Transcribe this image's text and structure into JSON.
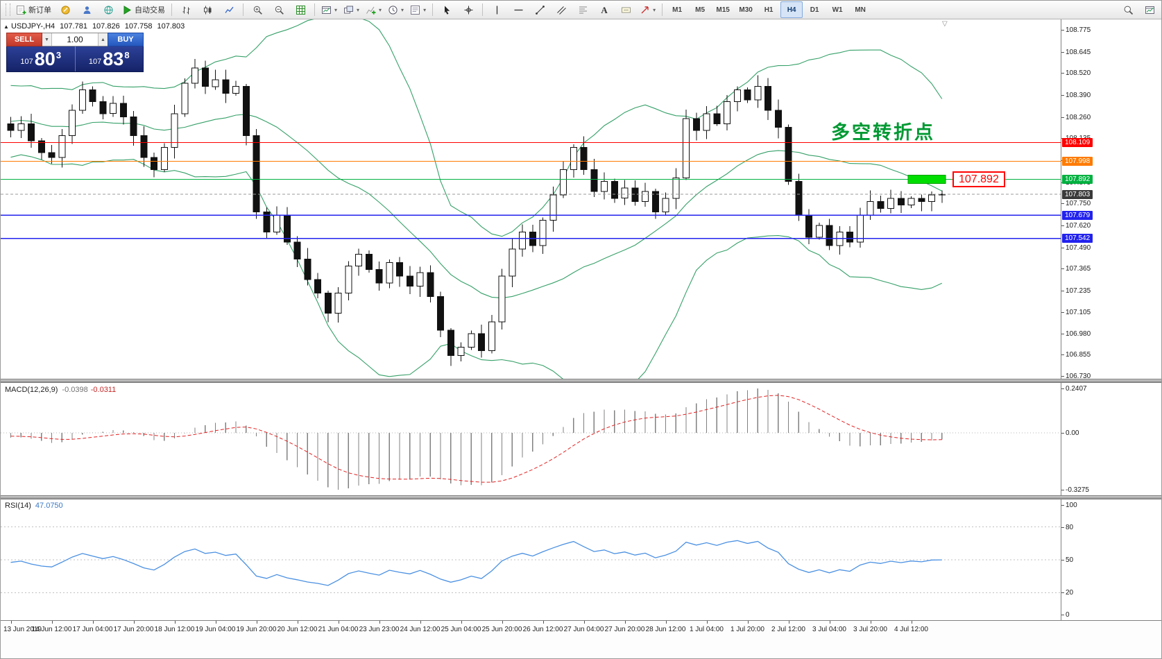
{
  "toolbar": {
    "items": [
      {
        "type": "grip",
        "name": "toolbar-grip"
      },
      {
        "name": "new-order-button",
        "icon": "new-order-icon",
        "label": "新订单"
      },
      {
        "name": "metaeditor-button",
        "icon": "metaeditor-icon"
      },
      {
        "name": "market-watch-button",
        "icon": "market-icon"
      },
      {
        "name": "community-button",
        "icon": "community-icon"
      },
      {
        "name": "autotrading-button",
        "icon": "play-icon",
        "label": "自动交易"
      },
      {
        "type": "sep"
      },
      {
        "name": "bar-chart-button",
        "icon": "bar-chart-icon"
      },
      {
        "name": "candlestick-button",
        "icon": "candlestick-icon"
      },
      {
        "name": "line-chart-button",
        "icon": "line-chart-icon"
      },
      {
        "type": "sep"
      },
      {
        "name": "zoom-in-button",
        "icon": "zoom-in-icon"
      },
      {
        "name": "zoom-out-button",
        "icon": "zoom-out-icon"
      },
      {
        "name": "tile-windows-button",
        "icon": "grid-icon"
      },
      {
        "type": "sep"
      },
      {
        "name": "new-chart-button",
        "icon": "chart-window-icon",
        "caret": true
      },
      {
        "name": "profiles-button",
        "icon": "windows-icon",
        "caret": true
      },
      {
        "name": "indicators-button",
        "icon": "indicators-icon",
        "caret": true
      },
      {
        "name": "periods-button",
        "icon": "clock-icon",
        "caret": true
      },
      {
        "name": "templates-button",
        "icon": "template-icon",
        "caret": true
      },
      {
        "type": "sep"
      },
      {
        "name": "cursor-button",
        "icon": "cursor-icon"
      },
      {
        "name": "crosshair-button",
        "icon": "crosshair-icon"
      },
      {
        "type": "sep"
      },
      {
        "name": "vertical-line-button",
        "icon": "vertical-line-icon"
      },
      {
        "name": "horizontal-line-button",
        "icon": "horizontal-line-icon"
      },
      {
        "name": "trendline-button",
        "icon": "trendline-icon"
      },
      {
        "name": "channel-button",
        "icon": "channel-icon"
      },
      {
        "name": "fibonacci-button",
        "icon": "fibonacci-icon"
      },
      {
        "name": "text-button",
        "icon": "text-icon"
      },
      {
        "name": "label-button",
        "icon": "label-icon"
      },
      {
        "name": "arrows-button",
        "icon": "arrow-icon",
        "caret": true
      },
      {
        "type": "sep"
      }
    ],
    "timeframes": [
      "M1",
      "M5",
      "M15",
      "M30",
      "H1",
      "H4",
      "D1",
      "W1",
      "MN"
    ],
    "active_timeframe": "H4",
    "right_items": [
      {
        "name": "search-button",
        "icon": "search-icon"
      },
      {
        "name": "new-window-button",
        "icon": "chart-window-icon"
      }
    ]
  },
  "chart": {
    "info": {
      "symbol_period": "USDJPY-,H4",
      "open": "107.781",
      "high": "107.826",
      "low": "107.758",
      "close": "107.803"
    }
  },
  "trade_panel": {
    "sell_label": "SELL",
    "buy_label": "BUY",
    "volume": "1.00",
    "sell_price": {
      "small": "107",
      "big": "80",
      "sup": "3"
    },
    "buy_price": {
      "small": "107",
      "big": "83",
      "sup": "8"
    }
  },
  "levels": [
    {
      "price": 108.109,
      "label": "108.109",
      "color": "#ff0000",
      "width": 1.2
    },
    {
      "price": 107.998,
      "label": "107.998",
      "color": "#ff7a00",
      "width": 1.2
    },
    {
      "price": 107.892,
      "label": "107.892",
      "color": "#00b140",
      "width": 1.2
    },
    {
      "price": 107.679,
      "label": "107.679",
      "color": "#2222ee",
      "width": 1.6
    },
    {
      "price": 107.542,
      "label": "107.542",
      "color": "#2222ee",
      "width": 1.6
    }
  ],
  "current_price": {
    "value": 107.803,
    "label": "107.803",
    "badge_color": "#3a3a3a",
    "line_color": "#999999"
  },
  "annotations": {
    "turning_point_text": "多空转折点",
    "turning_point_color": "#009933",
    "price_tag_text": "107.892",
    "price_tag_color": "#ff0000",
    "highlight_price": 107.892,
    "highlight_color": "#00dd00"
  },
  "chart_data": {
    "type": "candlestick",
    "symbol": "USDJPY-",
    "timeframe": "H4",
    "price_top": 108.775,
    "price_bottom": 106.73,
    "y_axis_ticks": [
      "108.775",
      "108.645",
      "108.520",
      "108.390",
      "108.260",
      "108.135",
      "108.005",
      "107.875",
      "107.750",
      "107.620",
      "107.490",
      "107.365",
      "107.235",
      "107.105",
      "106.980",
      "106.855",
      "106.730"
    ],
    "closes": [
      108.18,
      108.22,
      108.12,
      108.05,
      108.02,
      108.15,
      108.3,
      108.42,
      108.35,
      108.28,
      108.34,
      108.26,
      108.15,
      108.02,
      107.95,
      108.08,
      108.28,
      108.46,
      108.55,
      108.44,
      108.48,
      108.4,
      108.44,
      108.15,
      107.7,
      107.58,
      107.68,
      107.52,
      107.42,
      107.3,
      107.22,
      107.1,
      107.22,
      107.38,
      107.45,
      107.36,
      107.28,
      107.4,
      107.32,
      107.26,
      107.34,
      107.2,
      107.0,
      106.85,
      106.9,
      106.98,
      106.88,
      107.05,
      107.32,
      107.48,
      107.58,
      107.5,
      107.65,
      107.8,
      107.95,
      108.08,
      107.95,
      107.82,
      107.88,
      107.78,
      107.84,
      107.76,
      107.82,
      107.7,
      107.78,
      107.9,
      108.25,
      108.18,
      108.28,
      108.22,
      108.35,
      108.42,
      108.36,
      108.44,
      108.3,
      108.2,
      107.88,
      107.68,
      107.55,
      107.62,
      107.5,
      107.58,
      107.52,
      107.68,
      107.76,
      107.72,
      107.78,
      107.74,
      107.78,
      107.76,
      107.8,
      107.803
    ],
    "warmup_closes": [
      108.3,
      108.1,
      108.22,
      108.4,
      108.28,
      108.15,
      108.35,
      108.2,
      108.05,
      108.25,
      108.45,
      108.3,
      108.12,
      108.28,
      108.38,
      108.22,
      108.1,
      108.3,
      108.2,
      108.15
    ],
    "label_every_n_candles": 4,
    "time_labels": [
      "13 Jun 2019",
      "14 Jun 12:00",
      "17 Jun 04:00",
      "17 Jun 20:00",
      "18 Jun 12:00",
      "19 Jun 04:00",
      "19 Jun 20:00",
      "20 Jun 12:00",
      "21 Jun 04:00",
      "23 Jun 23:00",
      "24 Jun 12:00",
      "25 Jun 04:00",
      "25 Jun 20:00",
      "26 Jun 12:00",
      "27 Jun 04:00",
      "27 Jun 20:00",
      "28 Jun 12:00",
      "1 Jul 04:00",
      "1 Jul 20:00",
      "2 Jul 12:00",
      "3 Jul 04:00",
      "3 Jul 20:00",
      "4 Jul 12:00"
    ],
    "indicators": {
      "bollinger": {
        "period": 20,
        "deviation": 2,
        "color": "#35a068"
      },
      "macd": {
        "fast": 12,
        "slow": 26,
        "signal": 9,
        "label": "MACD(12,26,9)",
        "value_main": "-0.0398",
        "value_signal": "-0.0311",
        "axis_labels": [
          "0.2407",
          "0.00",
          "-0.3275"
        ],
        "hist_color": "#808080",
        "signal_color": "#e32222"
      },
      "rsi": {
        "period": 14,
        "label": "RSI(14)",
        "value": "47.0750",
        "axis_labels": [
          "100",
          "80",
          "50",
          "20",
          "0"
        ],
        "levels": [
          80,
          50,
          20
        ],
        "color": "#4a90e2"
      }
    },
    "candle_colors": {
      "bull_fill": "#ffffff",
      "bear_fill": "#111111",
      "outline": "#111111"
    }
  }
}
